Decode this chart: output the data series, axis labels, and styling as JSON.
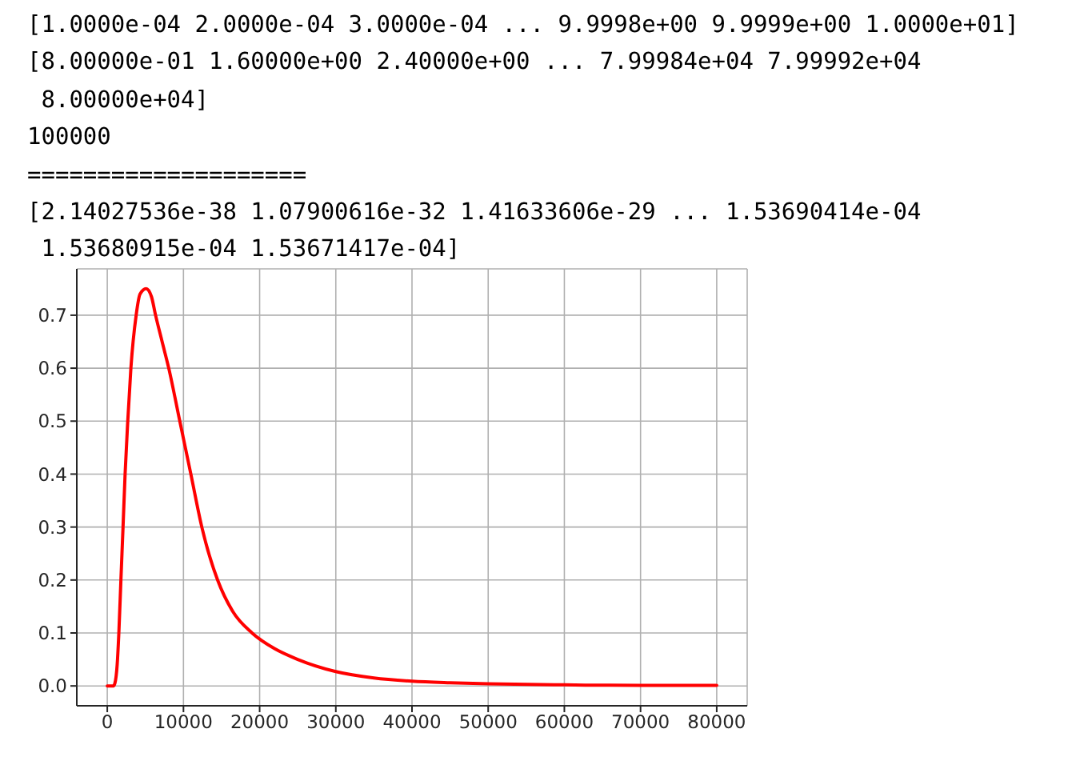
{
  "chart_data": {
    "type": "line",
    "annotations": [
      "[1.0000e-04 2.0000e-04 3.0000e-04 ... 9.9998e+00 9.9999e+00 1.0000e+01]",
      "[8.00000e-01 1.60000e+00 2.40000e+00 ... 7.99984e+04 7.99992e+04",
      " 8.00000e+04]",
      "100000",
      "====================",
      "[2.14027536e-38 1.07900616e-32 1.41633606e-29 ... 1.53690414e-04",
      " 1.53680915e-04 1.53671417e-04]"
    ],
    "x": [
      0,
      800,
      1000,
      1300,
      1520,
      1790,
      2070,
      2340,
      2690,
      3100,
      3790,
      4300,
      5100,
      5800,
      6340,
      7200,
      8070,
      9520,
      10970,
      12410,
      14480,
      16500,
      19000,
      22000,
      25000,
      30000,
      35000,
      40000,
      45000,
      50000,
      60000,
      70000,
      80000
    ],
    "series": [
      {
        "color": "#ff0000",
        "values": [
          0,
          0,
          0.005,
          0.04,
          0.1,
          0.2,
          0.3,
          0.4,
          0.5,
          0.6,
          0.7,
          0.74,
          0.75,
          0.735,
          0.7,
          0.65,
          0.6,
          0.5,
          0.4,
          0.3,
          0.2,
          0.14,
          0.1,
          0.07,
          0.05,
          0.027,
          0.015,
          0.009,
          0.006,
          0.004,
          0.002,
          0.001,
          0.001
        ]
      }
    ],
    "xlim": [
      -4000,
      84000
    ],
    "xticks": [
      0,
      10000,
      20000,
      30000,
      40000,
      50000,
      60000,
      70000,
      80000
    ],
    "ylim": [
      -0.0375,
      0.7875
    ],
    "yticks": [
      {
        "value": 0,
        "label": "0.0"
      },
      0.1,
      0.2,
      0.3,
      0.4,
      0.5,
      0.6,
      0.7
    ],
    "grid": true,
    "line_style": "solid"
  }
}
